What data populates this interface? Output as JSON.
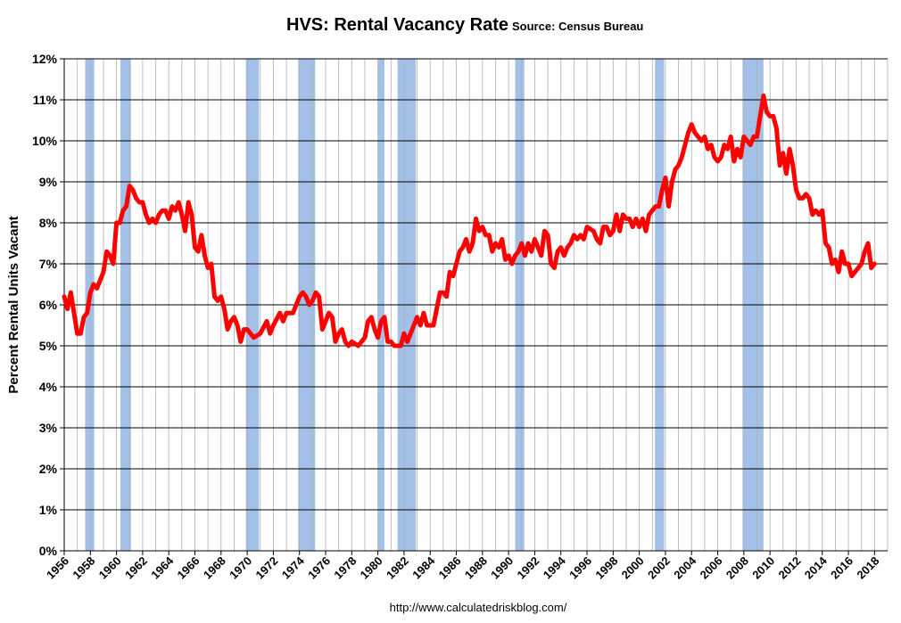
{
  "chart_data": {
    "type": "line",
    "title": "HVS: Rental Vacancy Rate",
    "source": "Source: Census Bureau",
    "ylabel": "Percent Rental Units Vacant",
    "footer": "http://www.calculatedriskblog.com/",
    "xlim": [
      1956,
      2019
    ],
    "ylim": [
      0,
      12
    ],
    "yticks": [
      {
        "value": 0,
        "label": "0%"
      },
      {
        "value": 1,
        "label": "1%"
      },
      {
        "value": 2,
        "label": "2%"
      },
      {
        "value": 3,
        "label": "3%"
      },
      {
        "value": 4,
        "label": "4%"
      },
      {
        "value": 5,
        "label": "5%"
      },
      {
        "value": 6,
        "label": "6%"
      },
      {
        "value": 7,
        "label": "7%"
      },
      {
        "value": 8,
        "label": "8%"
      },
      {
        "value": 9,
        "label": "9%"
      },
      {
        "value": 10,
        "label": "10%"
      },
      {
        "value": 11,
        "label": "11%"
      },
      {
        "value": 12,
        "label": "12%"
      }
    ],
    "xticks": [
      1956,
      1958,
      1960,
      1962,
      1964,
      1966,
      1968,
      1970,
      1972,
      1974,
      1976,
      1978,
      1980,
      1982,
      1984,
      1986,
      1988,
      1990,
      1992,
      1994,
      1996,
      1998,
      2000,
      2002,
      2004,
      2006,
      2008,
      2010,
      2012,
      2014,
      2016,
      2018
    ],
    "minor_xticks": [
      1957,
      1959,
      1961,
      1963,
      1965,
      1967,
      1969,
      1971,
      1973,
      1975,
      1977,
      1979,
      1981,
      1983,
      1985,
      1987,
      1989,
      1991,
      1993,
      1995,
      1997,
      1999,
      2001,
      2003,
      2005,
      2007,
      2009,
      2011,
      2013,
      2015,
      2017,
      2019
    ],
    "grid": true,
    "recession_color": "#a3c1e8",
    "recessions": [
      [
        1957.6,
        1958.3
      ],
      [
        1960.3,
        1961.1
      ],
      [
        1969.9,
        1970.9
      ],
      [
        1973.9,
        1975.2
      ],
      [
        1980.0,
        1980.5
      ],
      [
        1981.5,
        1982.9
      ],
      [
        1990.5,
        1991.2
      ],
      [
        2001.2,
        2001.9
      ],
      [
        2007.9,
        2009.5
      ]
    ],
    "series": [
      {
        "name": "Rental Vacancy Rate",
        "color": "#ff0000",
        "x": [
          1956,
          1956.25,
          1956.5,
          1956.75,
          1957,
          1957.25,
          1957.5,
          1957.75,
          1958,
          1958.25,
          1958.5,
          1958.75,
          1959,
          1959.25,
          1959.5,
          1959.75,
          1960,
          1960.25,
          1960.5,
          1960.75,
          1961,
          1961.25,
          1961.5,
          1961.75,
          1962,
          1962.25,
          1962.5,
          1962.75,
          1963,
          1963.25,
          1963.5,
          1963.75,
          1964,
          1964.25,
          1964.5,
          1964.75,
          1965,
          1965.25,
          1965.5,
          1965.75,
          1966,
          1966.25,
          1966.5,
          1966.75,
          1967,
          1967.25,
          1967.5,
          1967.75,
          1968,
          1968.25,
          1968.5,
          1968.75,
          1969,
          1969.25,
          1969.5,
          1969.75,
          1970,
          1970.5,
          1971,
          1971.5,
          1971.75,
          1972,
          1972.5,
          1972.75,
          1973,
          1973.5,
          1974,
          1974.25,
          1974.5,
          1974.75,
          1975,
          1975.25,
          1975.5,
          1975.75,
          1976,
          1976.25,
          1976.5,
          1976.75,
          1977,
          1977.25,
          1977.5,
          1977.75,
          1978,
          1978.5,
          1979,
          1979.25,
          1979.5,
          1979.75,
          1980,
          1980.25,
          1980.5,
          1980.75,
          1981,
          1981.25,
          1981.75,
          1982,
          1982.25,
          1982.5,
          1982.75,
          1983,
          1983.25,
          1983.5,
          1983.75,
          1984,
          1984.25,
          1984.5,
          1984.75,
          1985,
          1985.25,
          1985.5,
          1985.75,
          1986,
          1986.25,
          1986.5,
          1986.75,
          1987,
          1987.25,
          1987.5,
          1987.75,
          1988,
          1988.25,
          1988.5,
          1988.75,
          1989,
          1989.25,
          1989.5,
          1989.75,
          1990,
          1990.25,
          1990.5,
          1990.75,
          1991,
          1991.25,
          1991.5,
          1991.75,
          1992,
          1992.25,
          1992.5,
          1992.75,
          1993,
          1993.25,
          1993.5,
          1993.75,
          1994,
          1994.25,
          1994.5,
          1994.75,
          1995,
          1995.25,
          1995.5,
          1995.75,
          1996,
          1996.5,
          1996.75,
          1997,
          1997.25,
          1997.5,
          1997.75,
          1998,
          1998.25,
          1998.5,
          1998.75,
          1999,
          1999.25,
          1999.5,
          1999.75,
          2000,
          2000.25,
          2000.5,
          2000.75,
          2001,
          2001.25,
          2001.5,
          2001.75,
          2002,
          2002.25,
          2002.5,
          2002.75,
          2003,
          2003.25,
          2003.5,
          2003.75,
          2004,
          2004.25,
          2004.5,
          2004.75,
          2005,
          2005.25,
          2005.5,
          2005.75,
          2006,
          2006.25,
          2006.5,
          2006.75,
          2007,
          2007.25,
          2007.5,
          2007.75,
          2008,
          2008.25,
          2008.5,
          2008.75,
          2009,
          2009.25,
          2009.5,
          2009.75,
          2010,
          2010.25,
          2010.5,
          2010.75,
          2011,
          2011.25,
          2011.5,
          2011.75,
          2012,
          2012.25,
          2012.5,
          2012.75,
          2013,
          2013.25,
          2013.5,
          2013.75,
          2014,
          2014.25,
          2014.5,
          2014.75,
          2015,
          2015.25,
          2015.5,
          2015.75,
          2016,
          2016.25,
          2016.5,
          2016.75,
          2017,
          2017.25,
          2017.5,
          2017.75,
          2018
        ],
        "values": [
          6.2,
          5.9,
          6.3,
          5.8,
          5.3,
          5.3,
          5.7,
          5.8,
          6.3,
          6.5,
          6.4,
          6.6,
          6.8,
          7.3,
          7.2,
          7.0,
          8.0,
          8.0,
          8.3,
          8.4,
          8.9,
          8.8,
          8.6,
          8.5,
          8.5,
          8.2,
          8.0,
          8.1,
          8.0,
          8.2,
          8.3,
          8.3,
          8.1,
          8.4,
          8.3,
          8.5,
          8.2,
          7.8,
          8.5,
          8.2,
          7.4,
          7.3,
          7.7,
          7.2,
          6.9,
          7.0,
          6.2,
          6.1,
          6.2,
          5.9,
          5.4,
          5.6,
          5.7,
          5.5,
          5.1,
          5.4,
          5.4,
          5.2,
          5.3,
          5.6,
          5.3,
          5.5,
          5.8,
          5.6,
          5.8,
          5.8,
          6.2,
          6.3,
          6.2,
          6.0,
          6.1,
          6.3,
          6.2,
          5.4,
          5.6,
          5.8,
          5.7,
          5.1,
          5.3,
          5.4,
          5.1,
          5.0,
          5.1,
          5.0,
          5.2,
          5.6,
          5.7,
          5.4,
          5.2,
          5.6,
          5.7,
          5.1,
          5.1,
          5.0,
          5.0,
          5.3,
          5.1,
          5.3,
          5.5,
          5.7,
          5.5,
          5.8,
          5.5,
          5.5,
          5.5,
          5.9,
          6.3,
          6.3,
          6.2,
          6.8,
          6.7,
          7.0,
          7.3,
          7.4,
          7.6,
          7.3,
          7.5,
          8.1,
          7.8,
          7.9,
          7.7,
          7.7,
          7.3,
          7.5,
          7.4,
          7.6,
          7.1,
          7.2,
          7.0,
          7.2,
          7.3,
          7.5,
          7.2,
          7.5,
          7.3,
          7.6,
          7.4,
          7.2,
          7.8,
          7.7,
          7.0,
          6.9,
          7.3,
          7.4,
          7.2,
          7.4,
          7.5,
          7.7,
          7.6,
          7.7,
          7.6,
          7.9,
          7.8,
          7.6,
          7.5,
          7.9,
          7.9,
          7.7,
          7.8,
          8.2,
          7.8,
          8.2,
          8.1,
          8.1,
          7.9,
          8.1,
          7.9,
          8.1,
          7.8,
          8.2,
          8.3,
          8.4,
          8.4,
          8.8,
          9.1,
          8.4,
          9.0,
          9.3,
          9.4,
          9.6,
          9.9,
          10.2,
          10.4,
          10.2,
          10.1,
          10.0,
          10.1,
          9.8,
          9.9,
          9.6,
          9.5,
          9.6,
          9.9,
          9.8,
          10.1,
          9.5,
          9.8,
          9.6,
          10.1,
          10.0,
          9.9,
          10.1,
          10.1,
          10.6,
          11.1,
          10.7,
          10.6,
          10.6,
          10.3,
          9.4,
          9.7,
          9.2,
          9.8,
          9.4,
          8.8,
          8.6,
          8.6,
          8.7,
          8.6,
          8.2,
          8.3,
          8.2,
          8.3,
          7.5,
          7.4,
          7.0,
          7.1,
          6.8,
          7.3,
          7.0,
          7.0,
          6.7,
          6.8,
          6.9,
          7.0,
          7.3,
          7.5,
          6.9,
          7.0
        ]
      }
    ]
  }
}
